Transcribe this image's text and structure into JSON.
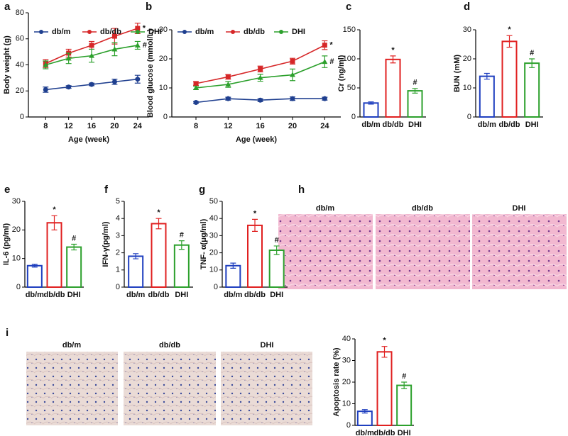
{
  "chart_data": [
    {
      "type": "line",
      "panel": "a",
      "ylabel": "Body weight (g)",
      "xlabel": "Age (week)",
      "x": [
        8,
        12,
        16,
        20,
        24
      ],
      "xlim": [
        5,
        26
      ],
      "xticks": [
        8,
        12,
        16,
        20,
        24
      ],
      "ylim": [
        0,
        80
      ],
      "yticks": [
        0,
        20,
        40,
        60,
        80
      ],
      "series": [
        {
          "name": "db/m",
          "color": "#1f3f8f",
          "marker": "circle",
          "values": [
            21,
            23,
            25,
            27,
            29
          ],
          "errors": [
            2,
            1,
            1,
            2,
            3
          ]
        },
        {
          "name": "db/db",
          "color": "#d62728",
          "marker": "square",
          "values": [
            41,
            49,
            55,
            62,
            68
          ],
          "errors": [
            3,
            3,
            3,
            6,
            4
          ]
        },
        {
          "name": "DHI",
          "color": "#2ca02c",
          "marker": "triangle",
          "values": [
            40,
            45,
            47,
            52,
            55
          ],
          "errors": [
            3,
            4,
            5,
            5,
            3
          ]
        }
      ],
      "annotations": [
        "*",
        "#"
      ]
    },
    {
      "type": "line",
      "panel": "b",
      "ylabel": "Blood glucose (mmol/L)",
      "xlabel": "Age (week)",
      "x": [
        8,
        12,
        16,
        20,
        24
      ],
      "xlim": [
        5,
        26
      ],
      "xticks": [
        8,
        12,
        16,
        20,
        24
      ],
      "ylim": [
        0,
        30
      ],
      "yticks": [
        0,
        10,
        20,
        30
      ],
      "series": [
        {
          "name": "db/m",
          "color": "#1f3f8f",
          "marker": "circle",
          "values": [
            5,
            6.3,
            5.8,
            6.3,
            6.3
          ],
          "errors": [
            0.3,
            0.5,
            0.5,
            0.6,
            0.5
          ]
        },
        {
          "name": "db/db",
          "color": "#d62728",
          "marker": "square",
          "values": [
            11.5,
            13.8,
            16.5,
            19.2,
            24.7
          ],
          "errors": [
            0.6,
            0.8,
            1,
            1,
            1.5
          ]
        },
        {
          "name": "DHI",
          "color": "#2ca02c",
          "marker": "triangle",
          "values": [
            10,
            11.2,
            13.5,
            14.5,
            19
          ],
          "errors": [
            0.6,
            1,
            1.2,
            2,
            2
          ]
        }
      ],
      "annotations": [
        "*",
        "#"
      ]
    },
    {
      "type": "bar",
      "panel": "c",
      "ylabel": "Cr (ng/ml)",
      "categories": [
        "db/m",
        "db/db",
        "DHI"
      ],
      "values": [
        24,
        99,
        45
      ],
      "errors": [
        2,
        6,
        4
      ],
      "colors": [
        "#1f3fbf",
        "#e02020",
        "#2ca02c"
      ],
      "ylim": [
        0,
        150
      ],
      "yticks": [
        0,
        50,
        100,
        150
      ],
      "annotations": [
        "*",
        "#"
      ]
    },
    {
      "type": "bar",
      "panel": "d",
      "ylabel": "BUN (mM)",
      "categories": [
        "db/m",
        "db/db",
        "DHI"
      ],
      "values": [
        14,
        26,
        18.5
      ],
      "errors": [
        1,
        2,
        1.5
      ],
      "colors": [
        "#1f3fbf",
        "#e02020",
        "#2ca02c"
      ],
      "ylim": [
        0,
        30
      ],
      "yticks": [
        0,
        10,
        20,
        30
      ],
      "annotations": [
        "*",
        "#"
      ]
    },
    {
      "type": "bar",
      "panel": "e",
      "ylabel": "IL-6 (pg/ml)",
      "categories": [
        "db/m",
        "db/db",
        "DHI"
      ],
      "values": [
        7.5,
        22.5,
        14
      ],
      "errors": [
        0.5,
        2.5,
        1
      ],
      "colors": [
        "#1f3fbf",
        "#e02020",
        "#2ca02c"
      ],
      "ylim": [
        0,
        30
      ],
      "yticks": [
        0,
        10,
        20,
        30
      ],
      "annotations": [
        "*",
        "#"
      ]
    },
    {
      "type": "bar",
      "panel": "f",
      "ylabel": "IFN-γ(pg/ml)",
      "categories": [
        "db/m",
        "db/db",
        "DHI"
      ],
      "values": [
        1.8,
        3.7,
        2.45
      ],
      "errors": [
        0.15,
        0.3,
        0.25
      ],
      "colors": [
        "#1f3fbf",
        "#e02020",
        "#2ca02c"
      ],
      "ylim": [
        0,
        5
      ],
      "yticks": [
        0,
        1,
        2,
        3,
        4,
        5
      ],
      "annotations": [
        "*",
        "#"
      ]
    },
    {
      "type": "bar",
      "panel": "g",
      "ylabel": "TNF- α(μg/ml)",
      "categories": [
        "db/m",
        "db/db",
        "DHI"
      ],
      "values": [
        12.5,
        36,
        21.5
      ],
      "errors": [
        1.5,
        3.5,
        2.5
      ],
      "colors": [
        "#1f3fbf",
        "#e02020",
        "#2ca02c"
      ],
      "ylim": [
        0,
        50
      ],
      "yticks": [
        0,
        10,
        20,
        30,
        40,
        50
      ],
      "annotations": [
        "*",
        "#"
      ]
    },
    {
      "type": "bar",
      "ylabel": "Apoptosis rate (%)",
      "categories": [
        "db/m",
        "db/db",
        "DHI"
      ],
      "values": [
        6.5,
        34,
        18.5
      ],
      "errors": [
        0.8,
        2.5,
        1.5
      ],
      "colors": [
        "#1f3fbf",
        "#e02020",
        "#2ca02c"
      ],
      "ylim": [
        0,
        40
      ],
      "yticks": [
        0,
        10,
        20,
        30,
        40
      ],
      "annotations": [
        "*",
        "#"
      ]
    }
  ],
  "histology": {
    "panel": "h",
    "labels": [
      "db/m",
      "db/db",
      "DHI"
    ]
  },
  "ihc": {
    "panel": "i",
    "labels": [
      "db/m",
      "db/db",
      "DHI"
    ]
  }
}
